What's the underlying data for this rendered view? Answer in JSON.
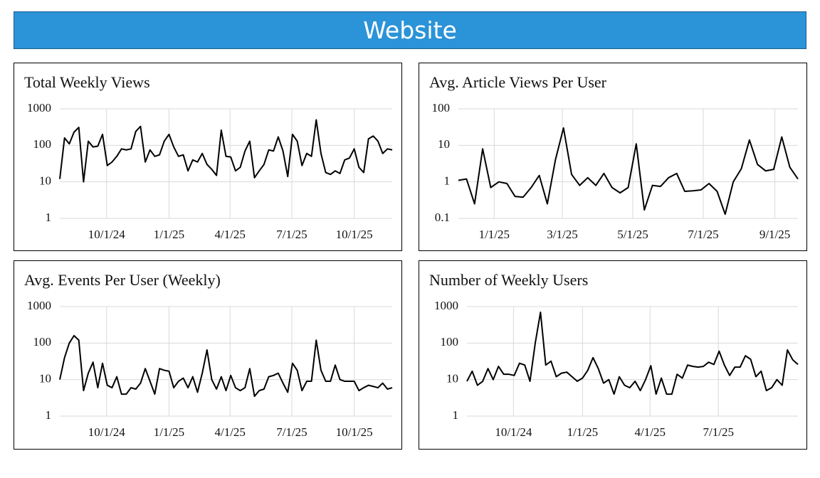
{
  "header": {
    "title": "Website"
  },
  "chart_data": [
    {
      "type": "line",
      "title": "Total Weekly Views",
      "log_scale": true,
      "grid": true,
      "color": "#000000",
      "x": [
        "7/24/24",
        "7/31/24",
        "8/7/24",
        "8/14/24",
        "8/21/24",
        "8/28/24",
        "9/4/24",
        "9/11/24",
        "9/18/24",
        "9/25/24",
        "10/2/24",
        "10/9/24",
        "10/16/24",
        "10/23/24",
        "10/30/24",
        "11/6/24",
        "11/13/24",
        "11/20/24",
        "11/27/24",
        "12/4/24",
        "12/11/24",
        "12/18/24",
        "12/25/24",
        "1/1/25",
        "1/8/25",
        "1/15/25",
        "1/22/25",
        "1/29/25",
        "2/5/25",
        "2/12/25",
        "2/19/25",
        "2/26/25",
        "3/5/25",
        "3/12/25",
        "3/19/25",
        "3/26/25",
        "4/2/25",
        "4/9/25",
        "4/16/25",
        "4/23/25",
        "4/30/25",
        "5/7/25",
        "5/14/25",
        "5/21/25",
        "5/28/25",
        "6/4/25",
        "6/11/25",
        "6/18/25",
        "6/25/25",
        "7/2/25",
        "7/9/25",
        "7/16/25",
        "7/23/25",
        "7/30/25",
        "8/6/25",
        "8/13/25",
        "8/20/25",
        "8/27/25",
        "9/3/25",
        "9/10/25",
        "9/17/25",
        "9/24/25",
        "10/1/25",
        "10/8/25",
        "10/15/25",
        "10/22/25",
        "10/29/25",
        "11/5/25",
        "11/12/25",
        "11/19/25",
        "11/26/25"
      ],
      "values": [
        12,
        160,
        110,
        230,
        310,
        10,
        130,
        90,
        95,
        200,
        28,
        35,
        50,
        80,
        75,
        80,
        240,
        330,
        35,
        75,
        50,
        55,
        130,
        200,
        90,
        50,
        55,
        20,
        40,
        35,
        60,
        30,
        22,
        15,
        260,
        50,
        48,
        20,
        25,
        70,
        130,
        13,
        20,
        30,
        75,
        70,
        170,
        70,
        14,
        200,
        130,
        28,
        60,
        50,
        500,
        60,
        18,
        16,
        20,
        17,
        40,
        45,
        80,
        25,
        18,
        150,
        180,
        130,
        60,
        80,
        75
      ],
      "xlim": [
        "7/24/24",
        "11/26/25"
      ],
      "xticks": [
        "10/1/24",
        "1/1/25",
        "4/1/25",
        "7/1/25",
        "10/1/25"
      ],
      "ylim": [
        1,
        1000
      ],
      "yticks": [
        1,
        10,
        100,
        1000
      ]
    },
    {
      "type": "line",
      "title": "Avg. Article Views Per User",
      "log_scale": true,
      "grid": true,
      "color": "#000000",
      "x": [
        "12/1/24",
        "12/8/24",
        "12/15/24",
        "12/22/24",
        "12/29/24",
        "1/5/25",
        "1/12/25",
        "1/19/25",
        "1/26/25",
        "2/2/25",
        "2/9/25",
        "2/16/25",
        "2/23/25",
        "3/2/25",
        "3/9/25",
        "3/16/25",
        "3/23/25",
        "3/30/25",
        "4/6/25",
        "4/13/25",
        "4/20/25",
        "4/27/25",
        "5/4/25",
        "5/11/25",
        "5/18/25",
        "5/25/25",
        "6/1/25",
        "6/8/25",
        "6/15/25",
        "6/22/25",
        "6/29/25",
        "7/6/25",
        "7/13/25",
        "7/20/25",
        "7/27/25",
        "8/3/25",
        "8/10/25",
        "8/17/25",
        "8/24/25",
        "8/31/25",
        "9/7/25",
        "9/14/25",
        "9/21/25"
      ],
      "values": [
        1.1,
        1.2,
        0.25,
        8,
        0.7,
        1,
        0.9,
        0.4,
        0.38,
        0.7,
        1.5,
        0.25,
        4,
        30,
        1.6,
        0.8,
        1.3,
        0.8,
        1.7,
        0.7,
        0.5,
        0.7,
        11,
        0.17,
        0.8,
        0.75,
        1.3,
        1.7,
        0.55,
        0.57,
        0.6,
        0.9,
        0.55,
        0.13,
        1,
        2.3,
        14,
        3,
        2,
        2.2,
        17,
        2.5,
        1.2
      ],
      "xlim": [
        "12/1/24",
        "9/21/25"
      ],
      "xticks": [
        "1/1/25",
        "3/1/25",
        "5/1/25",
        "7/1/25",
        "9/1/25"
      ],
      "ylim": [
        0.1,
        100
      ],
      "yticks": [
        0.1,
        1,
        10,
        100
      ]
    },
    {
      "type": "line",
      "title": "Avg. Events Per User (Weekly)",
      "log_scale": true,
      "grid": true,
      "color": "#000000",
      "x": [
        "7/24/24",
        "7/31/24",
        "8/7/24",
        "8/14/24",
        "8/21/24",
        "8/28/24",
        "9/4/24",
        "9/11/24",
        "9/18/24",
        "9/25/24",
        "10/2/24",
        "10/9/24",
        "10/16/24",
        "10/23/24",
        "10/30/24",
        "11/6/24",
        "11/13/24",
        "11/20/24",
        "11/27/24",
        "12/4/24",
        "12/11/24",
        "12/18/24",
        "12/25/24",
        "1/1/25",
        "1/8/25",
        "1/15/25",
        "1/22/25",
        "1/29/25",
        "2/5/25",
        "2/12/25",
        "2/19/25",
        "2/26/25",
        "3/5/25",
        "3/12/25",
        "3/19/25",
        "3/26/25",
        "4/2/25",
        "4/9/25",
        "4/16/25",
        "4/23/25",
        "4/30/25",
        "5/7/25",
        "5/14/25",
        "5/21/25",
        "5/28/25",
        "6/4/25",
        "6/11/25",
        "6/18/25",
        "6/25/25",
        "7/2/25",
        "7/9/25",
        "7/16/25",
        "7/23/25",
        "7/30/25",
        "8/6/25",
        "8/13/25",
        "8/20/25",
        "8/27/25",
        "9/3/25",
        "9/10/25",
        "9/17/25",
        "9/24/25",
        "10/1/25",
        "10/8/25",
        "10/15/25",
        "10/22/25",
        "10/29/25",
        "11/5/25",
        "11/12/25",
        "11/19/25",
        "11/26/25"
      ],
      "values": [
        10,
        40,
        100,
        160,
        120,
        5,
        15,
        30,
        6,
        28,
        7,
        6,
        12,
        4,
        4,
        6,
        5.5,
        8,
        20,
        9,
        4,
        20,
        18,
        17,
        6,
        9,
        11,
        6,
        12,
        4.5,
        15,
        65,
        10,
        5.5,
        12,
        5,
        13,
        6,
        5,
        6,
        20,
        3.5,
        5,
        5.5,
        12,
        13,
        15,
        8,
        4.5,
        28,
        18,
        5,
        9,
        9,
        120,
        18,
        9,
        9,
        25,
        10,
        9,
        9,
        9,
        5,
        6,
        7,
        6.5,
        6,
        8,
        5.5,
        6
      ],
      "xlim": [
        "7/24/24",
        "11/26/25"
      ],
      "xticks": [
        "10/1/24",
        "1/1/25",
        "4/1/25",
        "7/1/25",
        "10/1/25"
      ],
      "ylim": [
        1,
        1000
      ],
      "yticks": [
        1,
        10,
        100,
        1000
      ]
    },
    {
      "type": "line",
      "title": "Number of Weekly Users",
      "log_scale": true,
      "grid": true,
      "color": "#000000",
      "x": [
        "7/31/24",
        "8/7/24",
        "8/14/24",
        "8/21/24",
        "8/28/24",
        "9/4/24",
        "9/11/24",
        "9/18/24",
        "9/25/24",
        "10/2/24",
        "10/9/24",
        "10/16/24",
        "10/23/24",
        "10/30/24",
        "11/6/24",
        "11/13/24",
        "11/20/24",
        "11/27/24",
        "12/4/24",
        "12/11/24",
        "12/18/24",
        "12/25/24",
        "1/1/25",
        "1/8/25",
        "1/15/25",
        "1/22/25",
        "1/29/25",
        "2/5/25",
        "2/12/25",
        "2/19/25",
        "2/26/25",
        "3/5/25",
        "3/12/25",
        "3/19/25",
        "3/26/25",
        "4/2/25",
        "4/9/25",
        "4/16/25",
        "4/23/25",
        "4/30/25",
        "5/7/25",
        "5/14/25",
        "5/21/25",
        "5/28/25",
        "6/4/25",
        "6/11/25",
        "6/18/25",
        "6/25/25",
        "7/2/25",
        "7/9/25",
        "7/16/25",
        "7/23/25",
        "7/30/25",
        "8/6/25",
        "8/13/25",
        "8/20/25",
        "8/27/25",
        "9/3/25",
        "9/10/25",
        "9/17/25",
        "9/24/25",
        "10/1/25",
        "10/8/25",
        "10/15/25"
      ],
      "values": [
        9,
        17,
        7,
        9,
        20,
        10,
        23,
        14,
        14,
        13,
        28,
        25,
        9,
        100,
        700,
        25,
        32,
        12,
        15,
        16,
        12,
        9,
        11,
        18,
        40,
        20,
        8,
        10,
        4,
        12,
        7,
        6,
        9,
        5,
        10,
        24,
        4,
        11,
        4,
        4,
        14,
        11,
        25,
        23,
        22,
        23,
        30,
        26,
        60,
        25,
        13,
        22,
        22,
        45,
        36,
        12,
        17,
        5,
        6,
        10,
        7,
        65,
        35,
        26
      ],
      "xlim": [
        "7/31/24",
        "10/15/25"
      ],
      "xticks": [
        "10/1/24",
        "1/1/25",
        "4/1/25",
        "7/1/25"
      ],
      "ylim": [
        1,
        1000
      ],
      "yticks": [
        1,
        10,
        100,
        1000
      ]
    }
  ]
}
